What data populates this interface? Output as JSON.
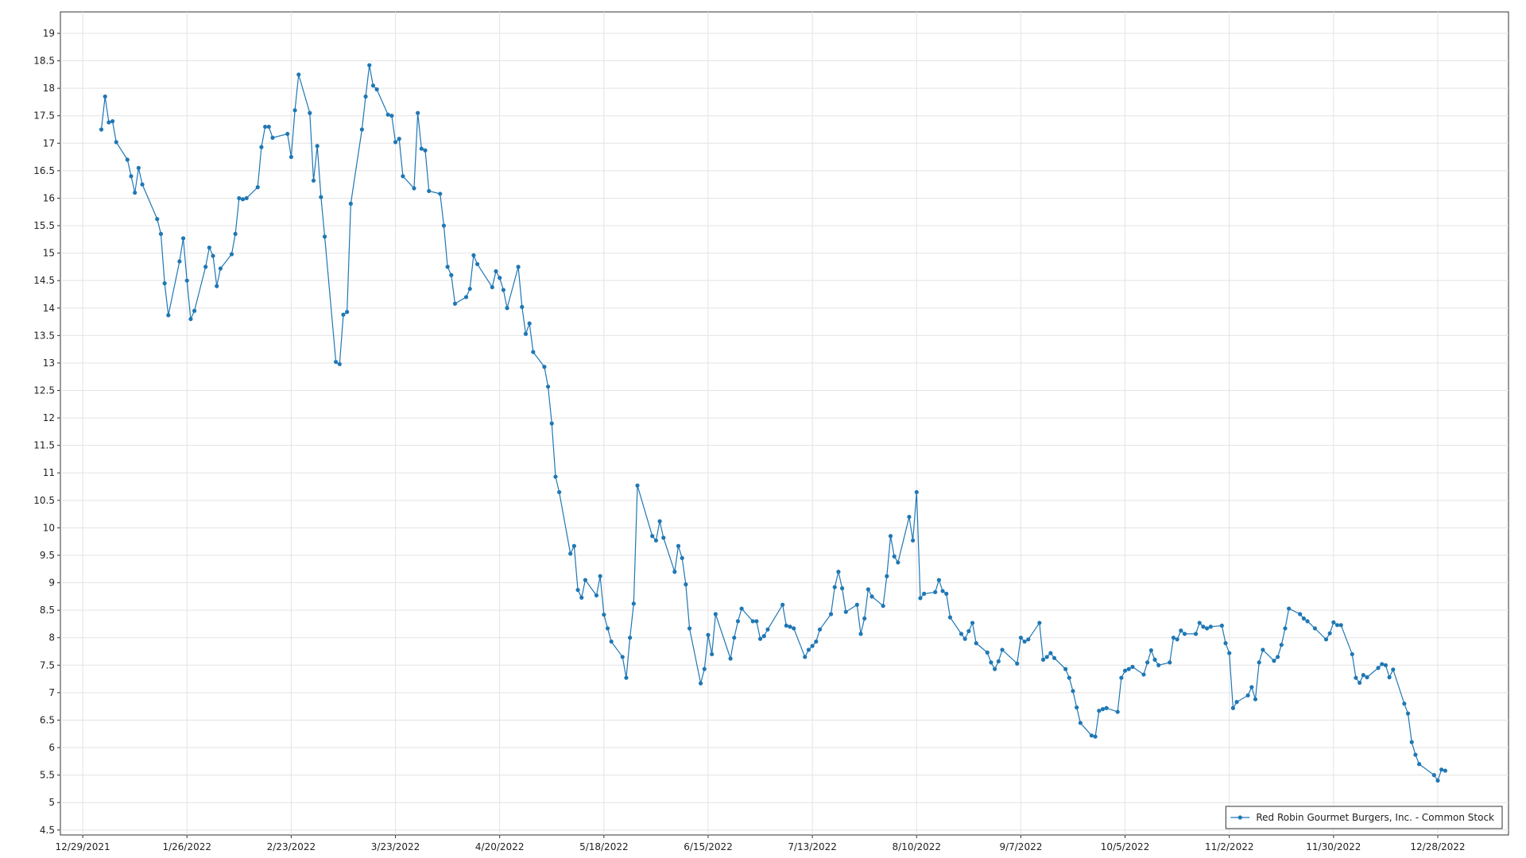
{
  "chart_data": {
    "type": "line",
    "x": [
      "1/3/2022",
      "1/4/2022",
      "1/5/2022",
      "1/6/2022",
      "1/7/2022",
      "1/10/2022",
      "1/11/2022",
      "1/12/2022",
      "1/13/2022",
      "1/14/2022",
      "1/18/2022",
      "1/19/2022",
      "1/20/2022",
      "1/21/2022",
      "1/24/2022",
      "1/25/2022",
      "1/26/2022",
      "1/27/2022",
      "1/28/2022",
      "1/31/2022",
      "2/1/2022",
      "2/2/2022",
      "2/3/2022",
      "2/4/2022",
      "2/7/2022",
      "2/8/2022",
      "2/9/2022",
      "2/10/2022",
      "2/11/2022",
      "2/14/2022",
      "2/15/2022",
      "2/16/2022",
      "2/17/2022",
      "2/18/2022",
      "2/22/2022",
      "2/23/2022",
      "2/24/2022",
      "2/25/2022",
      "2/28/2022",
      "3/1/2022",
      "3/2/2022",
      "3/3/2022",
      "3/4/2022",
      "3/7/2022",
      "3/8/2022",
      "3/9/2022",
      "3/10/2022",
      "3/11/2022",
      "3/14/2022",
      "3/15/2022",
      "3/16/2022",
      "3/17/2022",
      "3/18/2022",
      "3/21/2022",
      "3/22/2022",
      "3/23/2022",
      "3/24/2022",
      "3/25/2022",
      "3/28/2022",
      "3/29/2022",
      "3/30/2022",
      "3/31/2022",
      "4/1/2022",
      "4/4/2022",
      "4/5/2022",
      "4/6/2022",
      "4/7/2022",
      "4/8/2022",
      "4/11/2022",
      "4/12/2022",
      "4/13/2022",
      "4/14/2022",
      "4/18/2022",
      "4/19/2022",
      "4/20/2022",
      "4/21/2022",
      "4/22/2022",
      "4/25/2022",
      "4/26/2022",
      "4/27/2022",
      "4/28/2022",
      "4/29/2022",
      "5/2/2022",
      "5/3/2022",
      "5/4/2022",
      "5/5/2022",
      "5/6/2022",
      "5/9/2022",
      "5/10/2022",
      "5/11/2022",
      "5/12/2022",
      "5/13/2022",
      "5/16/2022",
      "5/17/2022",
      "5/18/2022",
      "5/19/2022",
      "5/20/2022",
      "5/23/2022",
      "5/24/2022",
      "5/25/2022",
      "5/26/2022",
      "5/27/2022",
      "5/31/2022",
      "6/1/2022",
      "6/2/2022",
      "6/3/2022",
      "6/6/2022",
      "6/7/2022",
      "6/8/2022",
      "6/9/2022",
      "6/10/2022",
      "6/13/2022",
      "6/14/2022",
      "6/15/2022",
      "6/16/2022",
      "6/17/2022",
      "6/21/2022",
      "6/22/2022",
      "6/23/2022",
      "6/24/2022",
      "6/27/2022",
      "6/28/2022",
      "6/29/2022",
      "6/30/2022",
      "7/1/2022",
      "7/5/2022",
      "7/6/2022",
      "7/7/2022",
      "7/8/2022",
      "7/11/2022",
      "7/12/2022",
      "7/13/2022",
      "7/14/2022",
      "7/15/2022",
      "7/18/2022",
      "7/19/2022",
      "7/20/2022",
      "7/21/2022",
      "7/22/2022",
      "7/25/2022",
      "7/26/2022",
      "7/27/2022",
      "7/28/2022",
      "7/29/2022",
      "8/1/2022",
      "8/2/2022",
      "8/3/2022",
      "8/4/2022",
      "8/5/2022",
      "8/8/2022",
      "8/9/2022",
      "8/10/2022",
      "8/11/2022",
      "8/12/2022",
      "8/15/2022",
      "8/16/2022",
      "8/17/2022",
      "8/18/2022",
      "8/19/2022",
      "8/22/2022",
      "8/23/2022",
      "8/24/2022",
      "8/25/2022",
      "8/26/2022",
      "8/29/2022",
      "8/30/2022",
      "8/31/2022",
      "9/1/2022",
      "9/2/2022",
      "9/6/2022",
      "9/7/2022",
      "9/8/2022",
      "9/9/2022",
      "9/12/2022",
      "9/13/2022",
      "9/14/2022",
      "9/15/2022",
      "9/16/2022",
      "9/19/2022",
      "9/20/2022",
      "9/21/2022",
      "9/22/2022",
      "9/23/2022",
      "9/26/2022",
      "9/27/2022",
      "9/28/2022",
      "9/29/2022",
      "9/30/2022",
      "10/3/2022",
      "10/4/2022",
      "10/5/2022",
      "10/6/2022",
      "10/7/2022",
      "10/10/2022",
      "10/11/2022",
      "10/12/2022",
      "10/13/2022",
      "10/14/2022",
      "10/17/2022",
      "10/18/2022",
      "10/19/2022",
      "10/20/2022",
      "10/21/2022",
      "10/24/2022",
      "10/25/2022",
      "10/26/2022",
      "10/27/2022",
      "10/28/2022",
      "10/31/2022",
      "11/1/2022",
      "11/2/2022",
      "11/3/2022",
      "11/4/2022",
      "11/7/2022",
      "11/8/2022",
      "11/9/2022",
      "11/10/2022",
      "11/11/2022",
      "11/14/2022",
      "11/15/2022",
      "11/16/2022",
      "11/17/2022",
      "11/18/2022",
      "11/21/2022",
      "11/22/2022",
      "11/23/2022",
      "11/25/2022",
      "11/28/2022",
      "11/29/2022",
      "11/30/2022",
      "12/1/2022",
      "12/2/2022",
      "12/5/2022",
      "12/6/2022",
      "12/7/2022",
      "12/8/2022",
      "12/9/2022",
      "12/12/2022",
      "12/13/2022",
      "12/14/2022",
      "12/15/2022",
      "12/16/2022",
      "12/19/2022",
      "12/20/2022",
      "12/21/2022",
      "12/22/2022",
      "12/23/2022",
      "12/27/2022",
      "12/28/2022",
      "12/29/2022",
      "12/30/2022"
    ],
    "series": [
      {
        "name": "Red Robin Gourmet Burgers, Inc. - Common Stock",
        "color": "#1f77b4",
        "values": [
          17.25,
          17.85,
          17.38,
          17.4,
          17.02,
          16.7,
          16.4,
          16.1,
          16.55,
          16.25,
          15.62,
          15.35,
          14.45,
          13.87,
          14.85,
          15.27,
          14.5,
          13.8,
          13.95,
          14.75,
          15.1,
          14.95,
          14.4,
          14.72,
          14.98,
          15.35,
          16.0,
          15.98,
          16.0,
          16.2,
          16.93,
          17.3,
          17.3,
          17.1,
          17.17,
          16.75,
          17.6,
          18.25,
          17.55,
          16.32,
          16.95,
          16.02,
          15.3,
          13.02,
          12.98,
          13.88,
          13.93,
          15.9,
          17.25,
          17.85,
          18.42,
          18.05,
          17.98,
          17.52,
          17.5,
          17.02,
          17.08,
          16.4,
          16.18,
          17.55,
          16.9,
          16.87,
          16.13,
          16.08,
          15.5,
          14.75,
          14.6,
          14.08,
          14.2,
          14.35,
          14.96,
          14.8,
          14.38,
          14.67,
          14.55,
          14.33,
          14.0,
          14.75,
          14.02,
          13.53,
          13.72,
          13.2,
          12.93,
          12.57,
          11.9,
          10.93,
          10.65,
          9.53,
          9.67,
          8.87,
          8.73,
          9.05,
          8.77,
          9.12,
          8.42,
          8.17,
          7.93,
          7.65,
          7.27,
          8.0,
          8.62,
          10.77,
          9.85,
          9.77,
          10.12,
          9.82,
          9.2,
          9.67,
          9.45,
          8.97,
          8.17,
          7.17,
          7.43,
          8.05,
          7.7,
          8.43,
          7.62,
          8.0,
          8.3,
          8.53,
          8.3,
          8.3,
          7.98,
          8.03,
          8.15,
          8.6,
          8.22,
          8.2,
          8.17,
          7.65,
          7.78,
          7.85,
          7.93,
          8.15,
          8.43,
          8.92,
          9.2,
          8.9,
          8.47,
          8.6,
          8.07,
          8.35,
          8.88,
          8.75,
          8.58,
          9.12,
          9.85,
          9.48,
          9.37,
          10.2,
          9.77,
          10.65,
          8.72,
          8.8,
          8.83,
          9.05,
          8.85,
          8.8,
          8.37,
          8.07,
          7.98,
          8.12,
          8.27,
          7.9,
          7.73,
          7.55,
          7.43,
          7.57,
          7.78,
          7.53,
          8.0,
          7.93,
          7.97,
          8.27,
          7.6,
          7.65,
          7.72,
          7.63,
          7.43,
          7.27,
          7.03,
          6.73,
          6.45,
          6.22,
          6.2,
          6.67,
          6.7,
          6.72,
          6.65,
          7.27,
          7.4,
          7.43,
          7.47,
          7.33,
          7.55,
          7.77,
          7.6,
          7.5,
          7.55,
          8.0,
          7.97,
          8.13,
          8.07,
          8.07,
          8.27,
          8.2,
          8.17,
          8.2,
          8.22,
          7.9,
          7.72,
          6.72,
          6.83,
          6.95,
          7.1,
          6.88,
          7.55,
          7.78,
          7.58,
          7.65,
          7.87,
          8.17,
          8.53,
          8.43,
          8.35,
          8.3,
          8.17,
          7.97,
          8.08,
          8.28,
          8.23,
          8.23,
          7.7,
          7.27,
          7.18,
          7.32,
          7.28,
          7.45,
          7.52,
          7.5,
          7.28,
          7.42,
          6.8,
          6.62,
          6.1,
          5.87,
          5.7,
          5.5,
          5.4,
          5.6,
          5.58
        ]
      }
    ],
    "xlim": [
      "12/23/2021",
      "1/16/2023"
    ],
    "xticks": [
      "12/29/2021",
      "1/26/2022",
      "2/23/2022",
      "3/23/2022",
      "4/20/2022",
      "5/18/2022",
      "6/15/2022",
      "7/13/2022",
      "8/10/2022",
      "9/7/2022",
      "10/5/2022",
      "11/2/2022",
      "11/30/2022",
      "12/28/2022"
    ],
    "ylim": [
      4.41,
      19.39
    ],
    "yticks": [
      4.5,
      5,
      5.5,
      6,
      6.5,
      7,
      7.5,
      8,
      8.5,
      9,
      9.5,
      10,
      10.5,
      11,
      11.5,
      12,
      12.5,
      13,
      13.5,
      14,
      14.5,
      15,
      15.5,
      16,
      16.5,
      17,
      17.5,
      18,
      18.5,
      19
    ],
    "grid": true,
    "legend": "lower right"
  }
}
